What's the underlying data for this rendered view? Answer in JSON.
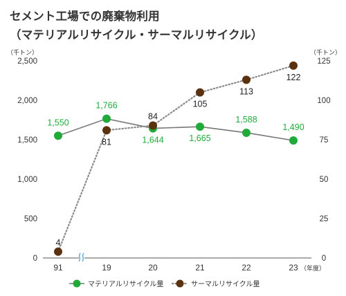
{
  "header": {
    "title_line1": "セメント工場での廃棄物利用",
    "title_line2": "（マテリアルリサイクル・サーマルリサイクル）"
  },
  "chart_data": {
    "type": "line",
    "categories": [
      "91",
      "19",
      "20",
      "21",
      "22",
      "23"
    ],
    "x_unit_label": "（年度）",
    "y_left": {
      "unit_label": "（千トン）",
      "range": [
        0,
        2500
      ],
      "ticks": [
        "0",
        "500",
        "1,000",
        "1,500",
        "2,000",
        "2,500"
      ]
    },
    "y_right": {
      "unit_label": "（千トン）",
      "range": [
        0,
        125
      ],
      "ticks": [
        "0",
        "25",
        "50",
        "75",
        "100",
        "125"
      ]
    },
    "axis_break": true,
    "series": [
      {
        "name": "マテリアルリサイクル量",
        "axis": "left",
        "color": "#1faa3a",
        "line_color": "#777777",
        "line_style": "solid",
        "values": [
          1550,
          1766,
          1644,
          1665,
          1588,
          1490
        ],
        "labels": [
          "1,550",
          "1,766",
          "1,644",
          "1,665",
          "1,588",
          "1,490"
        ]
      },
      {
        "name": "サーマルリサイクル量",
        "axis": "right",
        "color": "#5a3210",
        "line_color": "#8a8a8a",
        "line_style": "dotted",
        "values": [
          4,
          81,
          84,
          105,
          113,
          122
        ],
        "labels": [
          "4",
          "81",
          "84",
          "105",
          "113",
          "122"
        ]
      }
    ],
    "grid": false,
    "legend_position": "bottom"
  }
}
